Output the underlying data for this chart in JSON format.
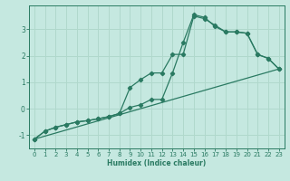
{
  "xlabel": "Humidex (Indice chaleur)",
  "ylabel": "",
  "xlim": [
    -0.5,
    23.5
  ],
  "ylim": [
    -1.5,
    3.9
  ],
  "xticks": [
    0,
    1,
    2,
    3,
    4,
    5,
    6,
    7,
    8,
    9,
    10,
    11,
    12,
    13,
    14,
    15,
    16,
    17,
    18,
    19,
    20,
    21,
    22,
    23
  ],
  "yticks": [
    -1,
    0,
    1,
    2,
    3
  ],
  "background_color": "#c5e8e0",
  "grid_color": "#b0d8cc",
  "line_color": "#2a7a62",
  "line1_x": [
    0,
    1,
    2,
    3,
    4,
    5,
    6,
    7,
    8,
    9,
    10,
    11,
    12,
    13,
    14,
    15,
    16,
    17,
    18,
    19,
    20,
    21,
    22,
    23
  ],
  "line1_y": [
    -1.15,
    -0.85,
    -0.7,
    -0.6,
    -0.5,
    -0.45,
    -0.38,
    -0.3,
    -0.18,
    0.8,
    1.1,
    1.35,
    1.35,
    2.05,
    2.05,
    3.5,
    3.4,
    3.15,
    2.9,
    2.9,
    2.85,
    2.05,
    1.9,
    1.5
  ],
  "line2_x": [
    0,
    1,
    2,
    3,
    4,
    5,
    6,
    7,
    8,
    9,
    10,
    11,
    12,
    13,
    14,
    15,
    16,
    17,
    18,
    19,
    20,
    21,
    22,
    23
  ],
  "line2_y": [
    -1.15,
    -0.85,
    -0.7,
    -0.6,
    -0.5,
    -0.45,
    -0.38,
    -0.3,
    -0.18,
    0.05,
    0.15,
    0.35,
    0.35,
    1.35,
    2.5,
    3.55,
    3.45,
    3.1,
    2.9,
    2.9,
    2.85,
    2.05,
    1.9,
    1.5
  ],
  "line3_x": [
    0,
    23
  ],
  "line3_y": [
    -1.15,
    1.5
  ]
}
